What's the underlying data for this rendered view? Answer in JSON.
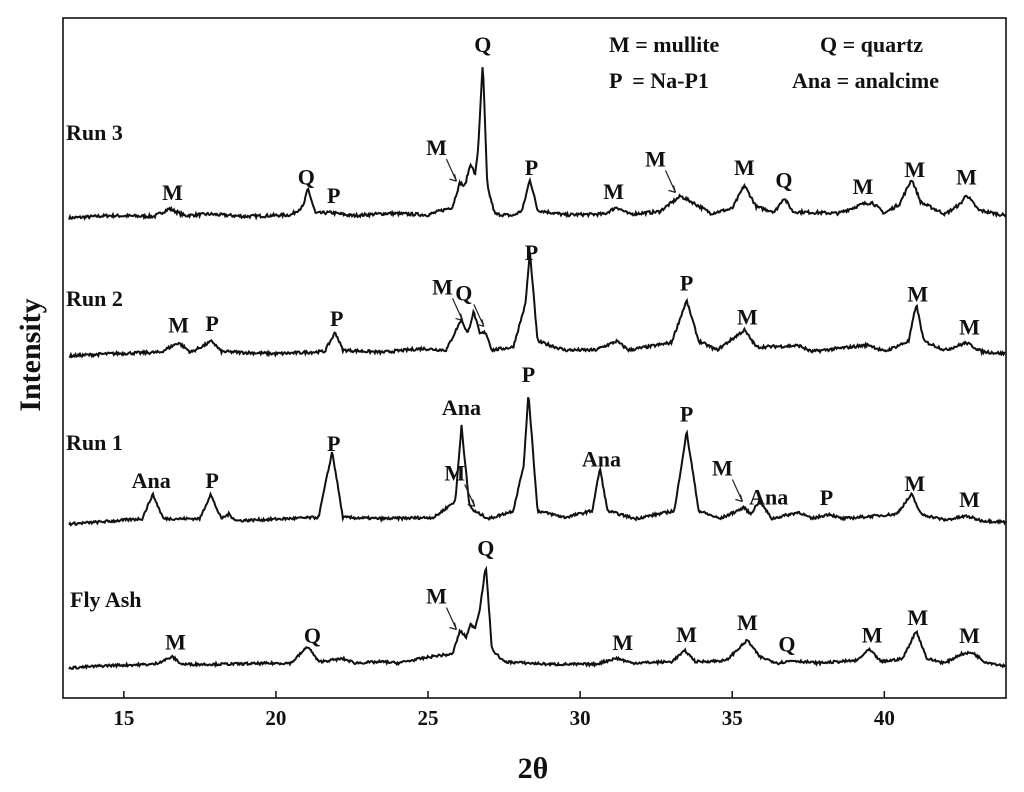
{
  "chart_data": {
    "type": "line",
    "xlabel": "2θ",
    "ylabel": "Intensity",
    "xlim": [
      13,
      44
    ],
    "xticks": [
      "15",
      "20",
      "25",
      "30",
      "35",
      "40"
    ],
    "xtick_values": [
      15,
      20,
      25,
      30,
      35,
      40
    ],
    "legend": {
      "placement": "top-right",
      "entries": [
        "M = mullite",
        "Q = quartz",
        "P  = Na-P1",
        "Ana = analcime"
      ]
    },
    "series": [
      {
        "name": "Run 3",
        "baseline": 0,
        "points": [
          [
            13.2,
            0
          ],
          [
            14.5,
            3
          ],
          [
            16.0,
            2
          ],
          [
            16.5,
            12
          ],
          [
            17.0,
            3
          ],
          [
            17.8,
            5
          ],
          [
            19.0,
            2
          ],
          [
            20.5,
            4
          ],
          [
            20.9,
            15
          ],
          [
            21.05,
            38
          ],
          [
            21.3,
            6
          ],
          [
            21.8,
            7
          ],
          [
            22.5,
            3
          ],
          [
            23.7,
            6
          ],
          [
            25.0,
            4
          ],
          [
            25.8,
            14
          ],
          [
            26.05,
            46
          ],
          [
            26.2,
            40
          ],
          [
            26.4,
            70
          ],
          [
            26.55,
            55
          ],
          [
            26.65,
            90
          ],
          [
            26.8,
            200
          ],
          [
            26.95,
            40
          ],
          [
            27.2,
            5
          ],
          [
            27.8,
            3
          ],
          [
            28.1,
            10
          ],
          [
            28.35,
            50
          ],
          [
            28.6,
            10
          ],
          [
            29.5,
            4
          ],
          [
            30.8,
            5
          ],
          [
            31.2,
            14
          ],
          [
            31.6,
            5
          ],
          [
            32.6,
            8
          ],
          [
            33.3,
            28
          ],
          [
            33.7,
            20
          ],
          [
            34.3,
            6
          ],
          [
            35.0,
            12
          ],
          [
            35.4,
            42
          ],
          [
            35.8,
            14
          ],
          [
            36.4,
            8
          ],
          [
            36.7,
            26
          ],
          [
            37.0,
            8
          ],
          [
            38.5,
            6
          ],
          [
            39.3,
            18
          ],
          [
            39.6,
            20
          ],
          [
            40.0,
            6
          ],
          [
            40.5,
            18
          ],
          [
            40.9,
            50
          ],
          [
            41.2,
            20
          ],
          [
            42.0,
            5
          ],
          [
            42.5,
            18
          ],
          [
            42.7,
            30
          ],
          [
            43.1,
            10
          ],
          [
            44.0,
            3
          ]
        ]
      },
      {
        "name": "Run 2",
        "baseline": 0,
        "points": [
          [
            13.2,
            0
          ],
          [
            14.5,
            3
          ],
          [
            16.2,
            5
          ],
          [
            16.8,
            18
          ],
          [
            17.2,
            5
          ],
          [
            17.9,
            20
          ],
          [
            18.2,
            6
          ],
          [
            20.0,
            3
          ],
          [
            21.6,
            6
          ],
          [
            21.95,
            32
          ],
          [
            22.2,
            8
          ],
          [
            23.5,
            5
          ],
          [
            24.8,
            10
          ],
          [
            25.6,
            8
          ],
          [
            26.1,
            50
          ],
          [
            26.3,
            30
          ],
          [
            26.5,
            60
          ],
          [
            26.7,
            30
          ],
          [
            26.9,
            32
          ],
          [
            27.1,
            8
          ],
          [
            27.8,
            12
          ],
          [
            28.2,
            70
          ],
          [
            28.35,
            140
          ],
          [
            28.6,
            20
          ],
          [
            29.5,
            8
          ],
          [
            30.5,
            8
          ],
          [
            31.2,
            20
          ],
          [
            31.6,
            8
          ],
          [
            33.0,
            18
          ],
          [
            33.5,
            75
          ],
          [
            33.9,
            20
          ],
          [
            34.5,
            8
          ],
          [
            35.4,
            35
          ],
          [
            35.8,
            12
          ],
          [
            37.2,
            14
          ],
          [
            37.6,
            6
          ],
          [
            39.5,
            15
          ],
          [
            40.0,
            6
          ],
          [
            40.8,
            20
          ],
          [
            41.05,
            70
          ],
          [
            41.3,
            20
          ],
          [
            42.0,
            8
          ],
          [
            42.7,
            18
          ],
          [
            43.2,
            6
          ],
          [
            44.0,
            3
          ]
        ]
      },
      {
        "name": "Run 1",
        "baseline": 0,
        "points": [
          [
            13.2,
            0
          ],
          [
            14.5,
            4
          ],
          [
            15.6,
            8
          ],
          [
            15.95,
            45
          ],
          [
            16.3,
            8
          ],
          [
            17.5,
            8
          ],
          [
            17.85,
            45
          ],
          [
            18.2,
            8
          ],
          [
            18.45,
            15
          ],
          [
            18.7,
            5
          ],
          [
            21.4,
            10
          ],
          [
            21.85,
            110
          ],
          [
            22.2,
            10
          ],
          [
            23.5,
            8
          ],
          [
            25.2,
            10
          ],
          [
            25.9,
            35
          ],
          [
            26.1,
            150
          ],
          [
            26.35,
            30
          ],
          [
            26.5,
            20
          ],
          [
            27.0,
            8
          ],
          [
            27.8,
            20
          ],
          [
            28.15,
            90
          ],
          [
            28.3,
            200
          ],
          [
            28.6,
            20
          ],
          [
            29.5,
            10
          ],
          [
            30.4,
            20
          ],
          [
            30.65,
            85
          ],
          [
            30.9,
            20
          ],
          [
            31.8,
            8
          ],
          [
            33.1,
            20
          ],
          [
            33.5,
            140
          ],
          [
            33.9,
            20
          ],
          [
            34.6,
            8
          ],
          [
            35.4,
            25
          ],
          [
            35.6,
            15
          ],
          [
            35.9,
            35
          ],
          [
            36.3,
            8
          ],
          [
            37.2,
            18
          ],
          [
            37.6,
            8
          ],
          [
            38.2,
            15
          ],
          [
            38.6,
            8
          ],
          [
            40.4,
            15
          ],
          [
            40.9,
            45
          ],
          [
            41.2,
            15
          ],
          [
            42.0,
            6
          ],
          [
            42.7,
            12
          ],
          [
            43.2,
            5
          ],
          [
            44.0,
            3
          ]
        ]
      },
      {
        "name": "Fly Ash",
        "baseline": 0,
        "points": [
          [
            13.2,
            0
          ],
          [
            14.5,
            4
          ],
          [
            16.0,
            6
          ],
          [
            16.6,
            18
          ],
          [
            16.9,
            6
          ],
          [
            18.0,
            6
          ],
          [
            20.5,
            8
          ],
          [
            21.05,
            35
          ],
          [
            21.4,
            10
          ],
          [
            22.2,
            15
          ],
          [
            22.6,
            8
          ],
          [
            23.5,
            10
          ],
          [
            24.0,
            8
          ],
          [
            25.3,
            20
          ],
          [
            25.8,
            22
          ],
          [
            26.05,
            60
          ],
          [
            26.25,
            50
          ],
          [
            26.4,
            70
          ],
          [
            26.55,
            65
          ],
          [
            26.7,
            95
          ],
          [
            26.9,
            165
          ],
          [
            27.1,
            30
          ],
          [
            27.5,
            10
          ],
          [
            29.0,
            6
          ],
          [
            30.5,
            6
          ],
          [
            31.2,
            16
          ],
          [
            31.7,
            8
          ],
          [
            33.0,
            10
          ],
          [
            33.45,
            28
          ],
          [
            33.8,
            10
          ],
          [
            34.8,
            12
          ],
          [
            35.5,
            45
          ],
          [
            35.9,
            18
          ],
          [
            36.5,
            8
          ],
          [
            37.0,
            12
          ],
          [
            37.8,
            8
          ],
          [
            39.1,
            12
          ],
          [
            39.5,
            30
          ],
          [
            39.9,
            10
          ],
          [
            40.6,
            15
          ],
          [
            41.05,
            60
          ],
          [
            41.4,
            15
          ],
          [
            42.0,
            8
          ],
          [
            42.5,
            22
          ],
          [
            42.9,
            25
          ],
          [
            43.3,
            10
          ],
          [
            44.0,
            3
          ]
        ]
      }
    ],
    "annotations": [
      {
        "series": "Run 3",
        "x": 16.6,
        "text": "M"
      },
      {
        "series": "Run 3",
        "x": 21.0,
        "text": "Q"
      },
      {
        "series": "Run 3",
        "x": 21.9,
        "text": "P"
      },
      {
        "series": "Run 3",
        "x": 26.0,
        "text": "M",
        "arrow": true
      },
      {
        "series": "Run 3",
        "x": 26.8,
        "text": "Q"
      },
      {
        "series": "Run 3",
        "x": 28.4,
        "text": "P"
      },
      {
        "series": "Run 3",
        "x": 31.1,
        "text": "M"
      },
      {
        "series": "Run 3",
        "x": 33.2,
        "text": "M",
        "arrow": true
      },
      {
        "series": "Run 3",
        "x": 35.4,
        "text": "M"
      },
      {
        "series": "Run 3",
        "x": 36.7,
        "text": "Q"
      },
      {
        "series": "Run 3",
        "x": 39.3,
        "text": "M"
      },
      {
        "series": "Run 3",
        "x": 41.0,
        "text": "M"
      },
      {
        "series": "Run 3",
        "x": 42.7,
        "text": "M"
      },
      {
        "series": "Run 2",
        "x": 16.8,
        "text": "M"
      },
      {
        "series": "Run 2",
        "x": 17.9,
        "text": "P"
      },
      {
        "series": "Run 2",
        "x": 22.0,
        "text": "P"
      },
      {
        "series": "Run 2",
        "x": 26.2,
        "text": "M",
        "arrow": true
      },
      {
        "series": "Run 2",
        "x": 26.9,
        "text": "Q",
        "arrow": true
      },
      {
        "series": "Run 2",
        "x": 28.4,
        "text": "P"
      },
      {
        "series": "Run 2",
        "x": 33.5,
        "text": "P"
      },
      {
        "series": "Run 2",
        "x": 35.5,
        "text": "M"
      },
      {
        "series": "Run 2",
        "x": 41.1,
        "text": "M"
      },
      {
        "series": "Run 2",
        "x": 42.8,
        "text": "M"
      },
      {
        "series": "Run 1",
        "x": 15.9,
        "text": "Ana"
      },
      {
        "series": "Run 1",
        "x": 17.9,
        "text": "P"
      },
      {
        "series": "Run 1",
        "x": 21.9,
        "text": "P"
      },
      {
        "series": "Run 1",
        "x": 26.1,
        "text": "Ana"
      },
      {
        "series": "Run 1",
        "x": 26.6,
        "text": "M",
        "arrow": true
      },
      {
        "series": "Run 1",
        "x": 28.3,
        "text": "P"
      },
      {
        "series": "Run 1",
        "x": 30.7,
        "text": "Ana"
      },
      {
        "series": "Run 1",
        "x": 33.5,
        "text": "P"
      },
      {
        "series": "Run 1",
        "x": 35.4,
        "text": "M",
        "arrow": true
      },
      {
        "series": "Run 1",
        "x": 36.2,
        "text": "Ana"
      },
      {
        "series": "Run 1",
        "x": 38.1,
        "text": "P"
      },
      {
        "series": "Run 1",
        "x": 41.0,
        "text": "M"
      },
      {
        "series": "Run 1",
        "x": 42.8,
        "text": "M"
      },
      {
        "series": "Fly Ash",
        "x": 16.7,
        "text": "M"
      },
      {
        "series": "Fly Ash",
        "x": 21.2,
        "text": "Q"
      },
      {
        "series": "Fly Ash",
        "x": 26.0,
        "text": "M",
        "arrow": true
      },
      {
        "series": "Fly Ash",
        "x": 26.9,
        "text": "Q"
      },
      {
        "series": "Fly Ash",
        "x": 31.4,
        "text": "M"
      },
      {
        "series": "Fly Ash",
        "x": 33.5,
        "text": "M"
      },
      {
        "series": "Fly Ash",
        "x": 35.5,
        "text": "M"
      },
      {
        "series": "Fly Ash",
        "x": 36.8,
        "text": "Q"
      },
      {
        "series": "Fly Ash",
        "x": 39.6,
        "text": "M"
      },
      {
        "series": "Fly Ash",
        "x": 41.1,
        "text": "M"
      },
      {
        "series": "Fly Ash",
        "x": 42.8,
        "text": "M"
      }
    ]
  }
}
